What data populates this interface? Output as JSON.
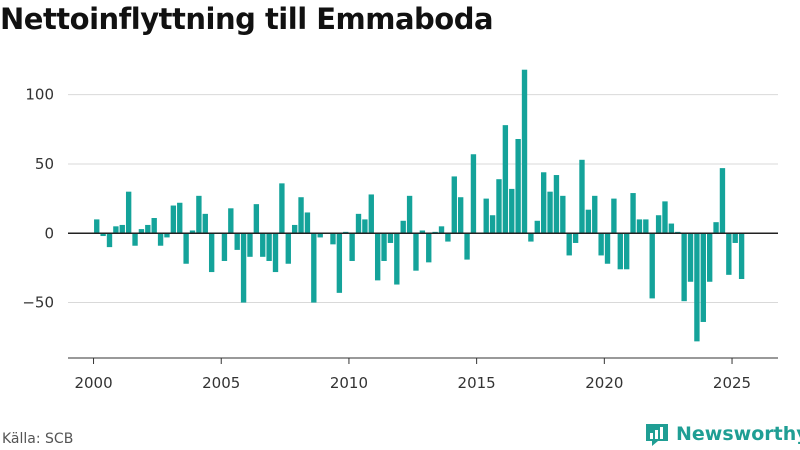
{
  "title": "Nettoinflyttning till Emmaboda",
  "source": "Källa: SCB",
  "brand": {
    "name": "Newsworthy",
    "icon": "newsworthy-logo-icon",
    "color": "#1f9e94"
  },
  "colors": {
    "bar": "#14a39a",
    "zero_line": "#222222",
    "grid": "#d9d9d9",
    "axis": "#333333"
  },
  "chart_data": {
    "type": "bar",
    "title": "Nettoinflyttning till Emmaboda",
    "xlabel": "",
    "ylabel": "",
    "ylim": [
      -90,
      125
    ],
    "xlim": [
      1999.0,
      2026.8
    ],
    "yticks": [
      -50,
      0,
      50,
      100
    ],
    "ytick_labels": [
      "−50",
      "0",
      "50",
      "100"
    ],
    "xticks": [
      2000,
      2005,
      2010,
      2015,
      2020,
      2025
    ],
    "xtick_labels": [
      "2000",
      "2005",
      "2010",
      "2015",
      "2020",
      "2025"
    ],
    "grid": true,
    "bar_width_years": 0.21,
    "start_period": "2000 Q1",
    "periodicity": "quarterly",
    "values": [
      10,
      -2,
      -10,
      5,
      6,
      30,
      -9,
      3,
      6,
      11,
      -9,
      -3,
      20,
      22,
      -22,
      2,
      27,
      14,
      -28,
      0,
      -20,
      18,
      -12,
      -50,
      -17,
      21,
      -17,
      -20,
      -28,
      36,
      -22,
      6,
      26,
      15,
      -50,
      -3,
      0,
      -8,
      -43,
      1,
      -20,
      14,
      10,
      28,
      -34,
      -20,
      -7,
      -37,
      9,
      27,
      -27,
      2,
      -21,
      1,
      5,
      -6,
      41,
      26,
      -19,
      57,
      0,
      25,
      13,
      39,
      78,
      32,
      68,
      118,
      -6,
      9,
      44,
      30,
      42,
      27,
      -16,
      -7,
      53,
      17,
      27,
      -16,
      -22,
      25,
      -26,
      -26,
      29,
      10,
      10,
      -47,
      13,
      23,
      7,
      1,
      -49,
      -35,
      -78,
      -64,
      -35,
      8,
      47,
      -30,
      -7,
      -33
    ]
  }
}
